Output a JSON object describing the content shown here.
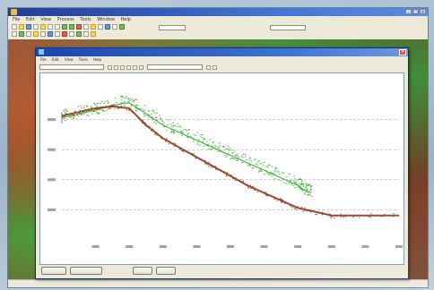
{
  "app": {
    "menu_items": [
      "File",
      "Edit",
      "View",
      "Process",
      "Tools",
      "Window",
      "Help"
    ],
    "toolbar_combos": [
      "",
      ""
    ],
    "status": {
      "left": "",
      "middle": "",
      "right": ""
    }
  },
  "dialog": {
    "title": "",
    "menu_items": [
      "File",
      "Edit",
      "View",
      "Tools",
      "Help"
    ],
    "combo1": "",
    "combo2": "",
    "info_left": "",
    "info_right": "",
    "buttons": [
      "",
      "",
      "",
      ""
    ]
  },
  "colors": {
    "green_series": "#3fae3a",
    "brown_series": "#8b3a1e",
    "gridline": "#9a9a9a"
  },
  "chart_data": {
    "type": "scatter",
    "grid": true,
    "legend": "none",
    "xlim": [
      0,
      10
    ],
    "ylim": [
      0,
      40
    ],
    "yticks": [
      8,
      16,
      24,
      32
    ],
    "xticks": [
      1,
      2,
      3,
      4,
      5,
      6,
      7,
      8,
      9,
      10
    ],
    "series": [
      {
        "color": "#3fae3a",
        "x": [
          0.0,
          0.5,
          1.0,
          1.5,
          2.0,
          2.5,
          3.0,
          3.5,
          4.0,
          4.5,
          5.0,
          5.5,
          6.0,
          6.5,
          7.0,
          7.2,
          7.4
        ],
        "y": [
          32.5,
          33.5,
          34.5,
          35.8,
          36.5,
          33.5,
          30.5,
          28.5,
          26.5,
          24.5,
          22.5,
          20.5,
          18.5,
          16.5,
          14.5,
          13.2,
          12.6
        ]
      },
      {
        "color": "#8b3a1e",
        "x": [
          0.0,
          0.5,
          1.0,
          1.5,
          2.0,
          2.5,
          3.0,
          3.5,
          4.0,
          4.5,
          5.0,
          5.5,
          6.0,
          6.5,
          7.0,
          7.5,
          8.0,
          9.0,
          10.0
        ],
        "y": [
          33.0,
          34.0,
          35.0,
          35.5,
          35.0,
          30.5,
          27.0,
          24.5,
          22.0,
          19.5,
          17.0,
          14.5,
          12.5,
          10.5,
          8.5,
          7.5,
          6.5,
          6.5,
          6.5
        ]
      }
    ]
  }
}
